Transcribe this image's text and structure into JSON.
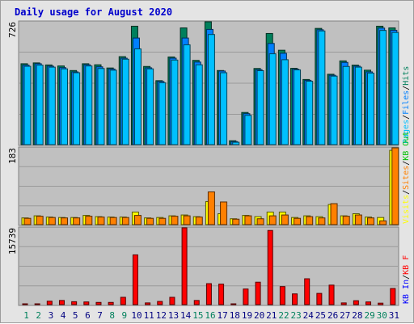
{
  "title": "Daily usage for August 2020",
  "colors": {
    "background": "#e4e4e4",
    "panel": "#c0c0c0",
    "hits": "#00805c",
    "files": "#0080ff",
    "pages": "#00c0ff",
    "visits": "#ffff00",
    "sites": "#ff8000",
    "kb_f": "#ff0000",
    "kb_in": "#0000ff",
    "kb_out": "#00c000",
    "weekend_day": "#00805c",
    "weekday": "#000080"
  },
  "panels": [
    {
      "id": "requests",
      "max_label": "726",
      "legend": [
        "Pages",
        "Files",
        "Hits"
      ]
    },
    {
      "id": "visitors",
      "max_label": "183",
      "legend": [
        "Visits",
        "Sites",
        "KB Out"
      ]
    },
    {
      "id": "volume",
      "max_label": "15739",
      "legend": [
        "KB In",
        "KB F"
      ]
    }
  ],
  "chart_data": {
    "type": "bar",
    "categories": [
      "1",
      "2",
      "3",
      "4",
      "5",
      "6",
      "7",
      "8",
      "9",
      "10",
      "11",
      "12",
      "13",
      "14",
      "15",
      "16",
      "17",
      "18",
      "19",
      "20",
      "21",
      "22",
      "23",
      "24",
      "25",
      "26",
      "27",
      "28",
      "29",
      "30",
      "31"
    ],
    "weekend": [
      true,
      true,
      false,
      false,
      false,
      false,
      false,
      true,
      true,
      false,
      false,
      false,
      false,
      false,
      true,
      true,
      false,
      false,
      false,
      false,
      false,
      true,
      true,
      false,
      false,
      false,
      false,
      false,
      true,
      true,
      false
    ],
    "series": [
      {
        "name": "Hits",
        "panel": 0,
        "ylim": [
          0,
          726
        ],
        "values": [
          478,
          483,
          471,
          465,
          438,
          478,
          472,
          453,
          520,
          700,
          462,
          378,
          518,
          690,
          498,
          726,
          438,
          23,
          190,
          450,
          657,
          558,
          451,
          385,
          687,
          416,
          495,
          470,
          440,
          700,
          690
        ]
      },
      {
        "name": "Files",
        "panel": 0,
        "ylim": [
          0,
          726
        ],
        "values": [
          470,
          478,
          464,
          455,
          430,
          472,
          460,
          447,
          511,
          630,
          454,
          373,
          511,
          630,
          488,
          681,
          435,
          18,
          183,
          443,
          598,
          540,
          446,
          380,
          679,
          410,
          486,
          464,
          430,
          689,
          676
        ]
      },
      {
        "name": "Pages",
        "panel": 0,
        "ylim": [
          0,
          726
        ],
        "values": [
          463,
          470,
          458,
          448,
          425,
          465,
          450,
          440,
          505,
          566,
          448,
          366,
          500,
          590,
          472,
          651,
          425,
          14,
          173,
          437,
          537,
          502,
          442,
          375,
          672,
          405,
          462,
          458,
          423,
          675,
          663
        ]
      },
      {
        "name": "Visits",
        "panel": 1,
        "ylim": [
          0,
          183
        ],
        "values": [
          16,
          21,
          18,
          17,
          17,
          22,
          19,
          18,
          18,
          30,
          16,
          17,
          21,
          23,
          19,
          55,
          26,
          14,
          22,
          19,
          30,
          30,
          17,
          21,
          19,
          48,
          21,
          26,
          18,
          17,
          177
        ]
      },
      {
        "name": "Sites",
        "panel": 1,
        "ylim": [
          0,
          183
        ],
        "values": [
          15,
          20,
          17,
          16,
          16,
          20,
          18,
          17,
          17,
          22,
          15,
          15,
          20,
          21,
          18,
          78,
          54,
          13,
          21,
          14,
          21,
          23,
          15,
          19,
          16,
          50,
          20,
          23,
          16,
          9,
          183
        ]
      },
      {
        "name": "KB F",
        "panel": 2,
        "ylim": [
          0,
          15739
        ],
        "values": [
          150,
          150,
          700,
          850,
          600,
          550,
          450,
          450,
          1500,
          10200,
          350,
          650,
          1500,
          15739,
          850,
          4300,
          4200,
          90,
          3200,
          4600,
          15200,
          3700,
          2200,
          5300,
          2300,
          4000,
          350,
          800,
          550,
          300,
          3300
        ]
      }
    ]
  }
}
